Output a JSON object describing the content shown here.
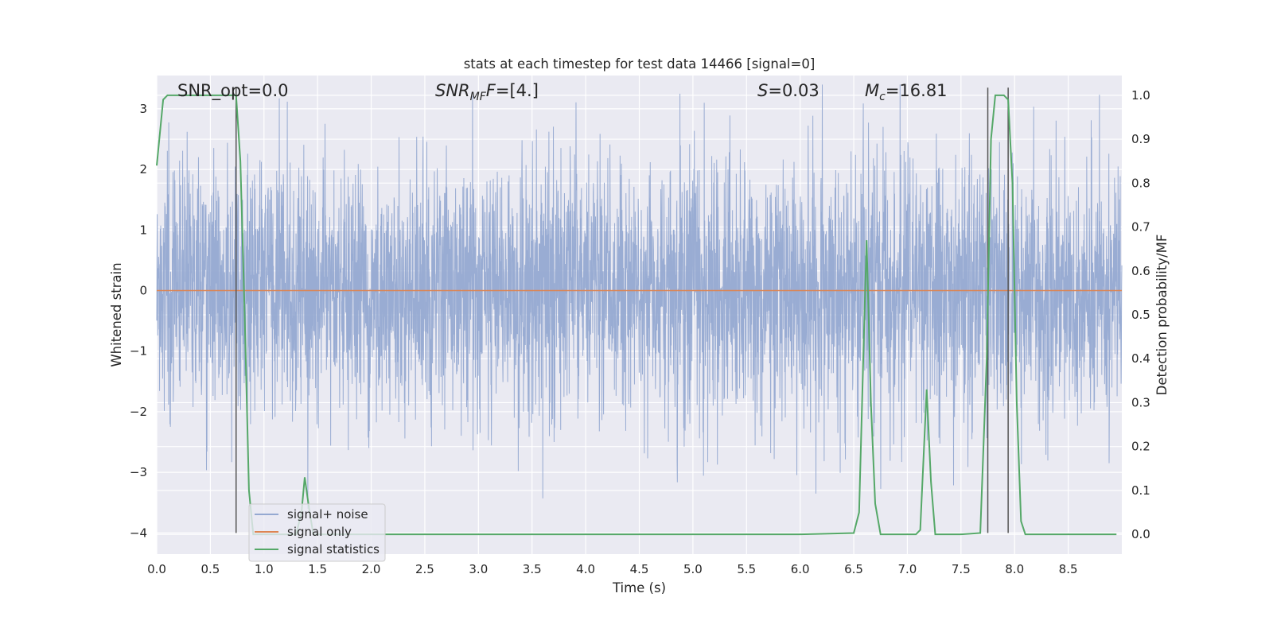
{
  "chart_data": {
    "type": "line",
    "title": "stats at each timestep for test data 14466 [signal=0]",
    "xlabel": "Time (s)",
    "ylabel": "Whitened strain",
    "y2label": "Detection probability/MF",
    "xlim": [
      0.0,
      9.0
    ],
    "ylim": [
      -4.35,
      3.55
    ],
    "y2lim": [
      -0.045,
      1.045
    ],
    "xticks": [
      "0.0",
      "0.5",
      "1.0",
      "1.5",
      "2.0",
      "2.5",
      "3.0",
      "3.5",
      "4.0",
      "4.5",
      "5.0",
      "5.5",
      "6.0",
      "6.5",
      "7.0",
      "7.5",
      "8.0",
      "8.5"
    ],
    "yticks": [
      "3",
      "2",
      "1",
      "0",
      "−1",
      "−2",
      "−3",
      "−4"
    ],
    "y2ticks": [
      "1.0",
      "0.9",
      "0.8",
      "0.7",
      "0.6",
      "0.5",
      "0.4",
      "0.3",
      "0.2",
      "0.1",
      "0.0"
    ],
    "grid": true,
    "legend_position": "lower-left",
    "annotations": {
      "snr_opt": "SNR_opt=0.0",
      "snr_mf": "=[4.]",
      "snr_mf_symbol": "SNR",
      "snr_mf_sub": "MF",
      "s_val": "=0.03",
      "s_symbol": "S",
      "mc_val": "=16.81",
      "mc_symbol": "M",
      "mc_sub": "c"
    },
    "series": [
      {
        "name": "signal+ noise",
        "color": "#95a9d1",
        "description_values": "noise, approx Gaussian, std ~1, range -3.6 to 3.4",
        "points": 4096,
        "seed": 14466
      },
      {
        "name": "signal only",
        "color": "#dd8452",
        "x": [
          0.0,
          9.0
        ],
        "y": [
          0.0,
          0.0
        ]
      },
      {
        "name": "signal statistics",
        "color": "#55a868",
        "axis": "right",
        "x": [
          0.0,
          0.06,
          0.1,
          0.2,
          0.3,
          0.4,
          0.5,
          0.6,
          0.7,
          0.74,
          0.78,
          0.82,
          0.86,
          0.9,
          1.0,
          1.1,
          1.2,
          1.3,
          1.35,
          1.38,
          1.42,
          1.46,
          1.5,
          1.6,
          2.0,
          3.0,
          4.0,
          5.0,
          6.0,
          6.5,
          6.55,
          6.6,
          6.62,
          6.66,
          6.7,
          6.75,
          6.8,
          7.0,
          7.08,
          7.12,
          7.18,
          7.22,
          7.26,
          7.3,
          7.5,
          7.68,
          7.74,
          7.78,
          7.82,
          7.86,
          7.9,
          7.94,
          7.98,
          8.02,
          8.06,
          8.1,
          8.15,
          8.2,
          8.5,
          8.95
        ],
        "y": [
          0.84,
          0.99,
          1.0,
          1.0,
          1.0,
          1.0,
          1.0,
          1.0,
          1.0,
          1.0,
          0.85,
          0.5,
          0.1,
          0.0,
          0.0,
          0.0,
          0.0,
          0.0,
          0.05,
          0.13,
          0.06,
          0.0,
          0.0,
          0.0,
          0.0,
          0.0,
          0.0,
          0.0,
          0.0,
          0.003,
          0.05,
          0.5,
          0.67,
          0.3,
          0.07,
          0.0,
          0.0,
          0.0,
          0.0,
          0.01,
          0.33,
          0.12,
          0.0,
          0.0,
          0.0,
          0.003,
          0.4,
          0.9,
          1.0,
          1.0,
          1.0,
          0.99,
          0.8,
          0.3,
          0.03,
          0.0,
          0.0,
          0.0,
          0.0,
          0.0
        ]
      }
    ],
    "vertical_lines": {
      "color": "#555555",
      "x": [
        0.74,
        7.75,
        7.94
      ],
      "y_top": 3.35,
      "y_bottom": -4.0
    }
  }
}
